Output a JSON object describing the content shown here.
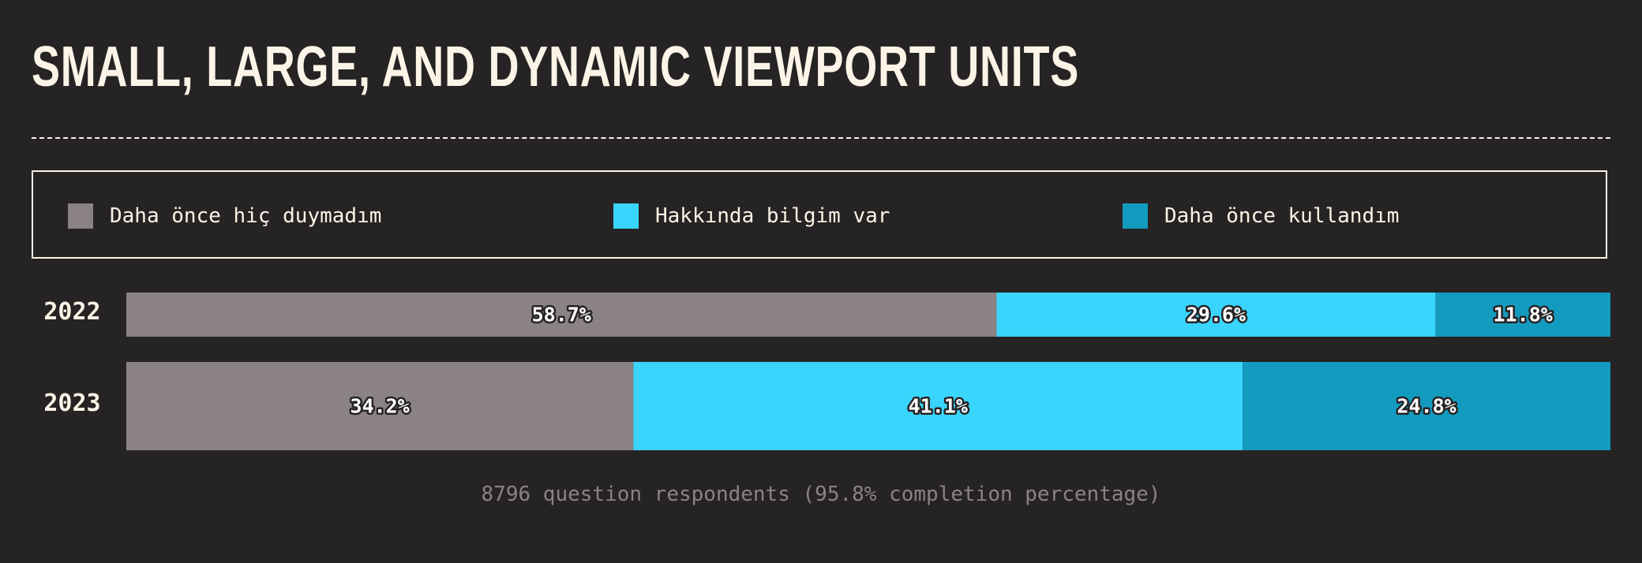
{
  "title": "SMALL, LARGE, AND DYNAMIC VIEWPORT UNITS",
  "footnote": "8796 question respondents (95.8% completion percentage)",
  "colors": {
    "background": "#262324",
    "text": "#fcf4e6",
    "never_heard": "#8b8283",
    "know_about": "#3ad5fd",
    "used": "#139bbf"
  },
  "legend": [
    {
      "label": "Daha önce hiç duymadım",
      "color": "#8b8283"
    },
    {
      "label": "Hakkında bilgim var",
      "color": "#3ad5fd"
    },
    {
      "label": "Daha önce kullandım",
      "color": "#139bbf"
    }
  ],
  "chart_data": {
    "type": "bar",
    "orientation": "horizontal",
    "stacked": true,
    "normalized": true,
    "title": "SMALL, LARGE, AND DYNAMIC VIEWPORT UNITS",
    "categories": [
      "2022",
      "2023"
    ],
    "series": [
      {
        "name": "Daha önce hiç duymadım",
        "color": "#8b8283",
        "values": [
          58.7,
          34.2
        ],
        "labels": [
          "58.7%",
          "34.2%"
        ]
      },
      {
        "name": "Hakkında bilgim var",
        "color": "#3ad5fd",
        "values": [
          29.6,
          41.1
        ],
        "labels": [
          "29.6%",
          "41.1%"
        ]
      },
      {
        "name": "Daha önce kullandım",
        "color": "#139bbf",
        "values": [
          11.8,
          24.8
        ],
        "labels": [
          "11.8%",
          "24.8%"
        ]
      }
    ],
    "legend_position": "top",
    "grid": false
  }
}
